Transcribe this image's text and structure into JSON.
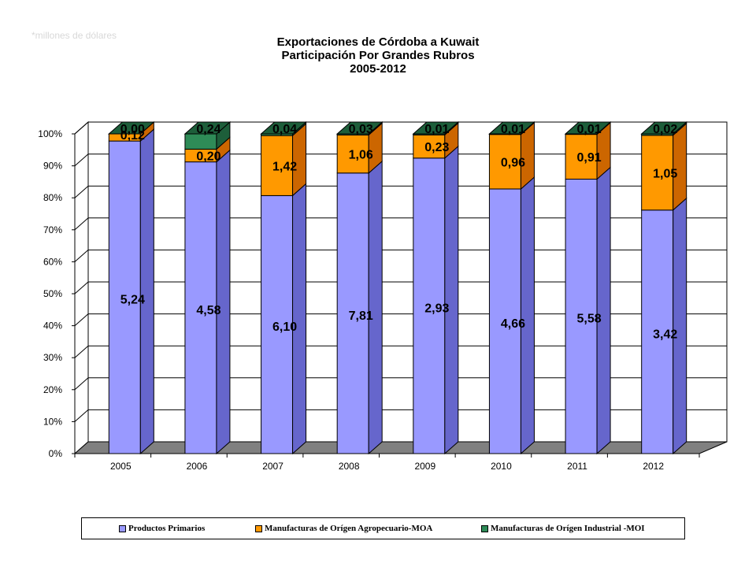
{
  "note": "*millones de dólares",
  "colors": {
    "primarios": "#9999ff",
    "primarios_side": "#6666cc",
    "moa": "#ff9900",
    "moa_side": "#cc6600",
    "moi": "#2e8b57",
    "moi_side": "#1d5e3a",
    "floor": "#808080",
    "wall": "#ffffff"
  },
  "chart_data": {
    "type": "bar",
    "stacked": "percent",
    "title": [
      "Exportaciones de Córdoba a Kuwait",
      "Participación Por Grandes Rubros",
      "2005-2012"
    ],
    "categories": [
      "2005",
      "2006",
      "2007",
      "2008",
      "2009",
      "2010",
      "2011",
      "2012"
    ],
    "series": [
      {
        "name": "Productos Primarios",
        "values": [
          5.24,
          4.58,
          6.1,
          7.81,
          2.93,
          4.66,
          5.58,
          3.42
        ],
        "labels": [
          "5,24",
          "4,58",
          "6,10",
          "7,81",
          "2,93",
          "4,66",
          "5,58",
          "3,42"
        ]
      },
      {
        "name": "Manufacturas de Orígen Agropecuario-MOA",
        "values": [
          0.12,
          0.2,
          1.42,
          1.06,
          0.23,
          0.96,
          0.91,
          1.05
        ],
        "labels": [
          "0,12",
          "0,20",
          "1,42",
          "1,06",
          "0,23",
          "0,96",
          "0,91",
          "1,05"
        ]
      },
      {
        "name": "Manufacturas de Orígen Industrial -MOI",
        "values": [
          0.0,
          0.24,
          0.04,
          0.03,
          0.01,
          0.01,
          0.01,
          0.02
        ],
        "labels": [
          "0,00",
          "0,24",
          "0,04",
          "0,03",
          "0,01",
          "0,01",
          "0,01",
          "0,02"
        ]
      }
    ],
    "y_ticks": [
      "0%",
      "10%",
      "20%",
      "30%",
      "40%",
      "50%",
      "60%",
      "70%",
      "80%",
      "90%",
      "100%"
    ],
    "ylim": [
      0,
      100
    ],
    "grid": true,
    "legend_position": "bottom"
  }
}
